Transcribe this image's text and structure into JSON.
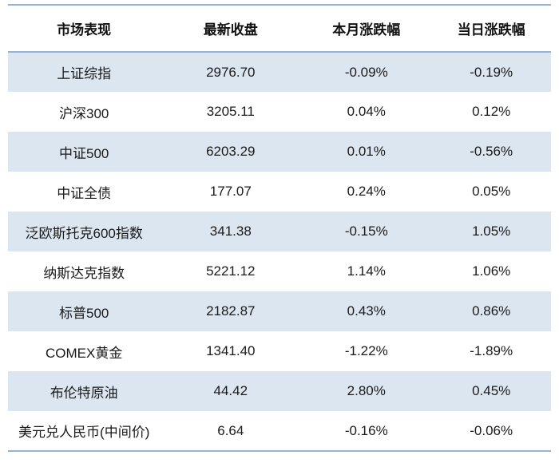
{
  "colors": {
    "border_blue": "#95b3d7",
    "band_blue": "#dce6f1",
    "text_dark": "#1a1a1a",
    "background": "#ffffff"
  },
  "table": {
    "columns": [
      "市场表现",
      "最新收盘",
      "本月涨跌幅",
      "当日涨跌幅"
    ],
    "rows": [
      [
        "上证综指",
        "2976.70",
        "-0.09%",
        "-0.19%"
      ],
      [
        "沪深300",
        "3205.11",
        "0.04%",
        "0.12%"
      ],
      [
        "中证500",
        "6203.29",
        "0.01%",
        "-0.56%"
      ],
      [
        "中证全债",
        "177.07",
        "0.24%",
        "0.05%"
      ],
      [
        "泛欧斯托克600指数",
        "341.38",
        "-0.15%",
        "1.05%"
      ],
      [
        "纳斯达克指数",
        "5221.12",
        "1.14%",
        "1.06%"
      ],
      [
        "标普500",
        "2182.87",
        "0.43%",
        "0.86%"
      ],
      [
        "COMEX黄金",
        "1341.40",
        "-1.22%",
        "-1.89%"
      ],
      [
        "布伦特原油",
        "44.42",
        "2.80%",
        "0.45%"
      ],
      [
        "美元兑人民币(中间价)",
        "6.64",
        "-0.16%",
        "-0.06%"
      ]
    ]
  },
  "chart_data": {
    "type": "table",
    "title": "市场表现",
    "columns": [
      "市场表现",
      "最新收盘",
      "本月涨跌幅",
      "当日涨跌幅"
    ],
    "rows": [
      {
        "market": "上证综指",
        "latest_close": 2976.7,
        "month_change_pct": -0.09,
        "day_change_pct": -0.19
      },
      {
        "market": "沪深300",
        "latest_close": 3205.11,
        "month_change_pct": 0.04,
        "day_change_pct": 0.12
      },
      {
        "market": "中证500",
        "latest_close": 6203.29,
        "month_change_pct": 0.01,
        "day_change_pct": -0.56
      },
      {
        "market": "中证全债",
        "latest_close": 177.07,
        "month_change_pct": 0.24,
        "day_change_pct": 0.05
      },
      {
        "market": "泛欧斯托克600指数",
        "latest_close": 341.38,
        "month_change_pct": -0.15,
        "day_change_pct": 1.05
      },
      {
        "market": "纳斯达克指数",
        "latest_close": 5221.12,
        "month_change_pct": 1.14,
        "day_change_pct": 1.06
      },
      {
        "market": "标普500",
        "latest_close": 2182.87,
        "month_change_pct": 0.43,
        "day_change_pct": 0.86
      },
      {
        "market": "COMEX黄金",
        "latest_close": 1341.4,
        "month_change_pct": -1.22,
        "day_change_pct": -1.89
      },
      {
        "market": "布伦特原油",
        "latest_close": 44.42,
        "month_change_pct": 2.8,
        "day_change_pct": 0.45
      },
      {
        "market": "美元兑人民币(中间价)",
        "latest_close": 6.64,
        "month_change_pct": -0.16,
        "day_change_pct": -0.06
      }
    ]
  }
}
